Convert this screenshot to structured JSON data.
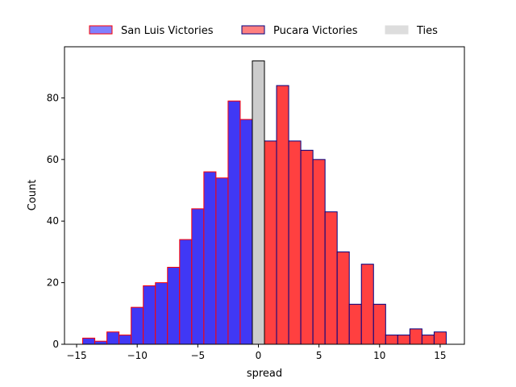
{
  "chart_data": {
    "type": "bar",
    "xlabel": "spread",
    "ylabel": "Count",
    "xlim": [
      -16,
      17
    ],
    "ylim": [
      0,
      96.6
    ],
    "x_ticks": [
      -15,
      -10,
      -5,
      0,
      5,
      10,
      15
    ],
    "x_tick_labels": [
      "−15",
      "−10",
      "−5",
      "0",
      "5",
      "10",
      "15"
    ],
    "y_ticks": [
      0,
      20,
      40,
      60,
      80
    ],
    "y_tick_labels": [
      "0",
      "20",
      "40",
      "60",
      "80"
    ],
    "grid": false,
    "legend_placement": "top-center, outside plot",
    "series": [
      {
        "name": "San Luis Victories",
        "color": "#4038f5",
        "edge_color": "#ff0000",
        "legend_color": "#8080ff",
        "bins": [
          {
            "x": -14,
            "count": 2
          },
          {
            "x": -13,
            "count": 1
          },
          {
            "x": -12,
            "count": 4
          },
          {
            "x": -11,
            "count": 3
          },
          {
            "x": -10,
            "count": 12
          },
          {
            "x": -9,
            "count": 19
          },
          {
            "x": -8,
            "count": 20
          },
          {
            "x": -7,
            "count": 25
          },
          {
            "x": -6,
            "count": 34
          },
          {
            "x": -5,
            "count": 44
          },
          {
            "x": -4,
            "count": 56
          },
          {
            "x": -3,
            "count": 54
          },
          {
            "x": -2,
            "count": 79
          },
          {
            "x": -1,
            "count": 73
          }
        ]
      },
      {
        "name": "Pucara Victories",
        "color": "#ff4040",
        "edge_color": "#000080",
        "legend_color": "#ff8080",
        "bins": [
          {
            "x": 1,
            "count": 66
          },
          {
            "x": 2,
            "count": 84
          },
          {
            "x": 3,
            "count": 66
          },
          {
            "x": 4,
            "count": 63
          },
          {
            "x": 5,
            "count": 60
          },
          {
            "x": 6,
            "count": 43
          },
          {
            "x": 7,
            "count": 30
          },
          {
            "x": 8,
            "count": 13
          },
          {
            "x": 9,
            "count": 26
          },
          {
            "x": 10,
            "count": 13
          },
          {
            "x": 11,
            "count": 3
          },
          {
            "x": 12,
            "count": 3
          },
          {
            "x": 13,
            "count": 5
          },
          {
            "x": 14,
            "count": 3
          },
          {
            "x": 15,
            "count": 4
          }
        ]
      },
      {
        "name": "Ties",
        "color": "#cccccc",
        "edge_color": "#000000",
        "legend_color": "#dddddd",
        "bins": [
          {
            "x": 0,
            "count": 92
          }
        ]
      }
    ]
  }
}
